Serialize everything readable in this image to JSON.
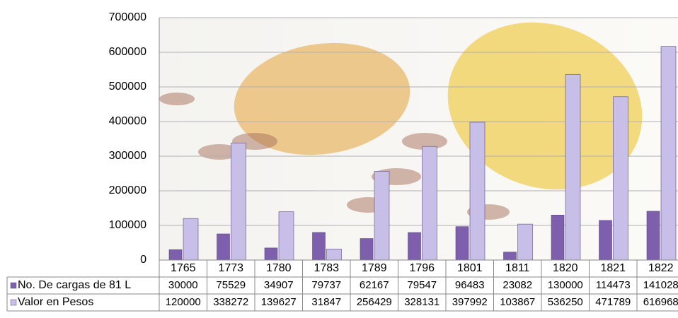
{
  "chart_data": {
    "type": "bar",
    "categories": [
      "1765",
      "1773",
      "1780",
      "1783",
      "1789",
      "1796",
      "1801",
      "1811",
      "1820",
      "1821",
      "1822"
    ],
    "series": [
      {
        "name": "No. De cargas de 81 L",
        "color": "#7d5fae",
        "values": [
          30000,
          75529,
          34907,
          79737,
          62167,
          79547,
          96483,
          23082,
          130000,
          114473,
          141028
        ]
      },
      {
        "name": "Valor en Pesos",
        "color": "#c8bfe8",
        "values": [
          120000,
          338272,
          139627,
          31847,
          256429,
          328131,
          397992,
          103867,
          536250,
          471789,
          616968
        ]
      }
    ],
    "ylim": [
      0,
      700000
    ],
    "yticks": [
      0,
      100000,
      200000,
      300000,
      400000,
      500000,
      600000,
      700000
    ],
    "grid": true
  }
}
